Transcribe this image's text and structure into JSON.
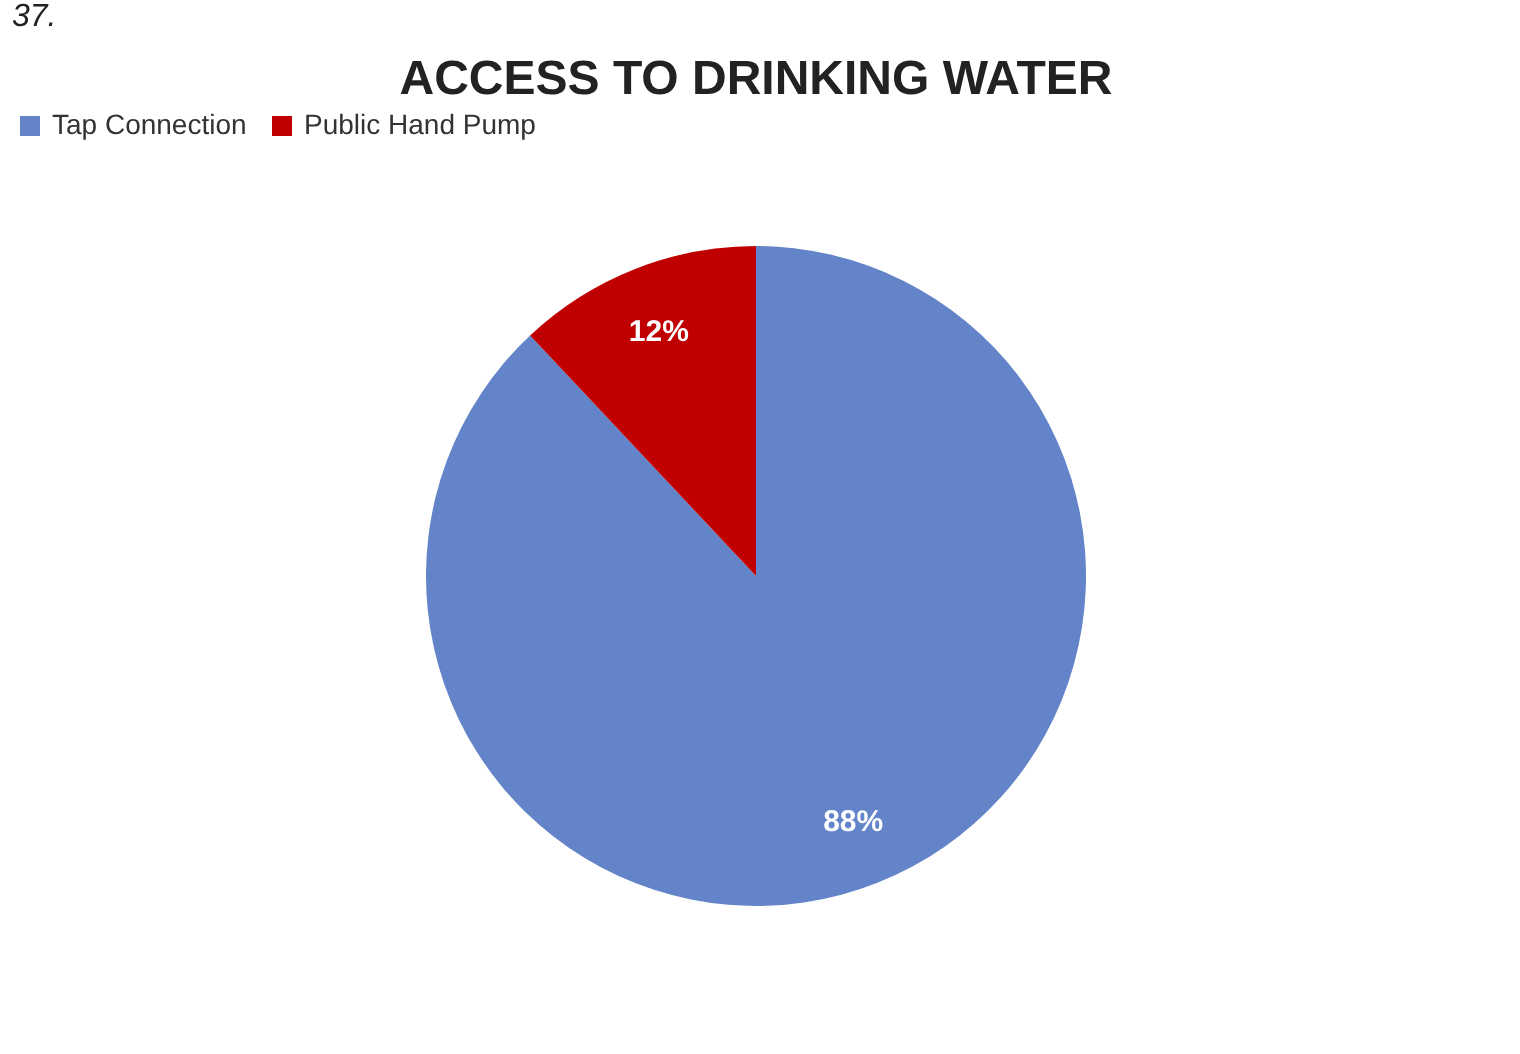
{
  "chart_data": {
    "type": "pie",
    "title": "ACCESS TO DRINKING WATER",
    "categories": [
      "Tap Connection",
      "Public Hand Pump"
    ],
    "values": [
      88,
      12
    ],
    "colors": [
      "#6384c8",
      "#c00000"
    ],
    "value_labels": [
      "88%",
      "12%"
    ],
    "legend": "top",
    "annotations": [
      "37."
    ]
  }
}
